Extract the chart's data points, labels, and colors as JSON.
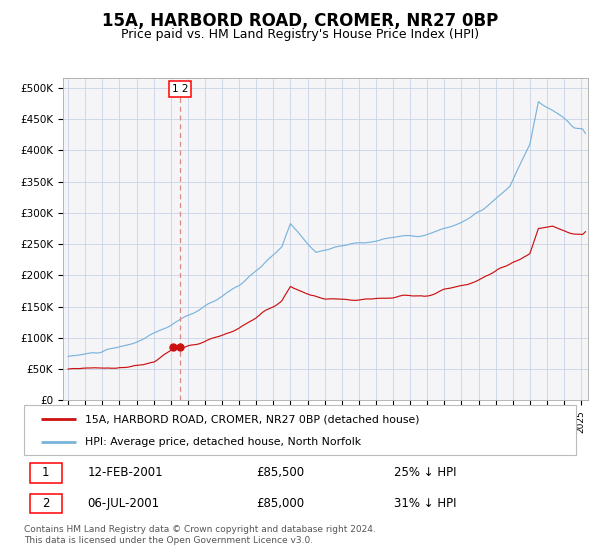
{
  "title": "15A, HARBORD ROAD, CROMER, NR27 0BP",
  "subtitle": "Price paid vs. HM Land Registry's House Price Index (HPI)",
  "title_fontsize": 12,
  "subtitle_fontsize": 9,
  "ylabel_ticks": [
    "£0",
    "£50K",
    "£100K",
    "£150K",
    "£200K",
    "£250K",
    "£300K",
    "£350K",
    "£400K",
    "£450K",
    "£500K"
  ],
  "ytick_values": [
    0,
    50000,
    100000,
    150000,
    200000,
    250000,
    300000,
    350000,
    400000,
    450000,
    500000
  ],
  "ylim": [
    0,
    515000
  ],
  "xlim_start": 1994.7,
  "xlim_end": 2025.4,
  "hpi_color": "#7ab4dc",
  "property_color": "#cc1111",
  "dashed_line_color": "#dd8888",
  "marker_color": "#cc1111",
  "grid_color": "#c8d4e8",
  "bg_color": "#f5f5f8",
  "legend_label_property": "15A, HARBORD ROAD, CROMER, NR27 0BP (detached house)",
  "legend_label_hpi": "HPI: Average price, detached house, North Norfolk",
  "transaction1_date": "12-FEB-2001",
  "transaction1_price": 85500,
  "transaction1_hpi_diff": "25% ↓ HPI",
  "transaction2_date": "06-JUL-2001",
  "transaction2_price": 85000,
  "transaction2_hpi_diff": "31% ↓ HPI",
  "footer_text1": "Contains HM Land Registry data © Crown copyright and database right 2024.",
  "footer_text2": "This data is licensed under the Open Government Licence v3.0.",
  "dashed_x": 2001.55,
  "marker1_x": 2001.12,
  "marker1_y": 85500,
  "marker2_x": 2001.52,
  "marker2_y": 85000
}
